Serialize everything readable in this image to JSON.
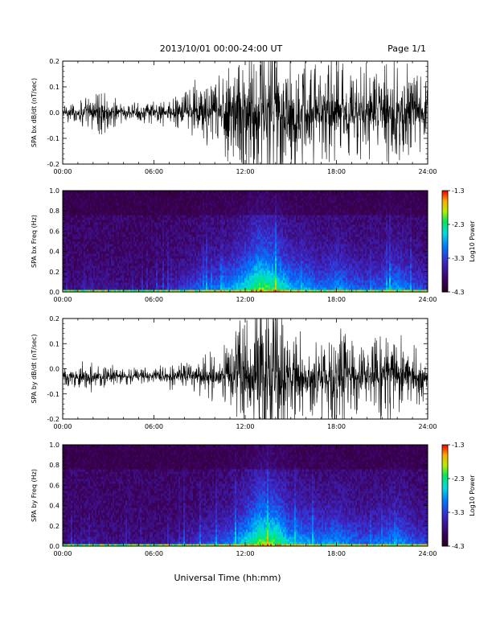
{
  "header": {
    "date_range": "2013/10/01   00:00-24:00 UT",
    "page": "Page 1/1"
  },
  "xlabel": "Universal Time (hh:mm)",
  "chart_data": [
    {
      "type": "line",
      "ylabel": "SPA bx dB/dt (nT/sec)",
      "xlim": [
        0,
        24
      ],
      "ylim": [
        -0.2,
        0.2
      ],
      "x_ticks": [
        "00:00",
        "06:00",
        "12:00",
        "18:00",
        "24:00"
      ],
      "y_ticks": [
        "-0.2",
        "-0.1",
        "0.0",
        "0.1",
        "0.2"
      ],
      "series": [
        {
          "x_hours": [
            0,
            1,
            2,
            3,
            4,
            5,
            6,
            7,
            8,
            9,
            10,
            11,
            12,
            13,
            14,
            15,
            16,
            17,
            18,
            19,
            20,
            21,
            22,
            23,
            24
          ],
          "envelope": [
            0.02,
            0.03,
            0.05,
            0.06,
            0.03,
            0.02,
            0.03,
            0.03,
            0.05,
            0.08,
            0.1,
            0.14,
            0.17,
            0.22,
            0.2,
            0.16,
            0.14,
            0.12,
            0.18,
            0.12,
            0.1,
            0.12,
            0.13,
            0.1,
            0.08
          ],
          "offset": [
            0.0,
            0.0,
            0.0,
            0.0,
            0.0,
            0.0,
            0.0,
            0.0,
            0.0,
            0.0,
            0.0,
            0.0,
            0.0,
            0.0,
            0.0,
            0.0,
            0.0,
            0.0,
            0.0,
            0.0,
            0.0,
            0.0,
            0.0,
            0.0,
            0.0
          ]
        }
      ]
    },
    {
      "type": "heatmap",
      "ylabel": "SPA bx Freq (Hz)",
      "xlim": [
        0,
        24
      ],
      "ylim": [
        0,
        1
      ],
      "x_ticks": [
        "00:00",
        "06:00",
        "12:00",
        "18:00",
        "24:00"
      ],
      "y_ticks": [
        "0.0",
        "0.2",
        "0.4",
        "0.6",
        "0.8",
        "1.0"
      ],
      "colorbar": {
        "label": "Log10 Power",
        "ticks": [
          "-1.3",
          "-2.3",
          "-3.3",
          "-4.3"
        ],
        "range": [
          -4.3,
          -1.3
        ]
      },
      "activity_by_hour": [
        0.05,
        0.1,
        0.15,
        0.15,
        0.1,
        0.1,
        0.15,
        0.2,
        0.3,
        0.4,
        0.45,
        0.55,
        0.7,
        0.9,
        0.8,
        0.6,
        0.55,
        0.45,
        0.55,
        0.45,
        0.4,
        0.45,
        0.55,
        0.4,
        0.3
      ]
    },
    {
      "type": "line",
      "ylabel": "SPA by dB/dt (nT/sec)",
      "xlim": [
        0,
        24
      ],
      "ylim": [
        -0.2,
        0.2
      ],
      "x_ticks": [
        "00:00",
        "06:00",
        "12:00",
        "18:00",
        "24:00"
      ],
      "y_ticks": [
        "-0.2",
        "-0.1",
        "0.0",
        "0.1",
        "0.2"
      ],
      "series": [
        {
          "x_hours": [
            0,
            1,
            2,
            3,
            4,
            5,
            6,
            7,
            8,
            9,
            10,
            11,
            12,
            13,
            14,
            15,
            16,
            17,
            18,
            19,
            20,
            21,
            22,
            23,
            24
          ],
          "envelope": [
            0.02,
            0.03,
            0.04,
            0.03,
            0.02,
            0.02,
            0.02,
            0.03,
            0.03,
            0.05,
            0.06,
            0.08,
            0.15,
            0.22,
            0.21,
            0.15,
            0.1,
            0.1,
            0.14,
            0.1,
            0.08,
            0.1,
            0.11,
            0.08,
            0.06
          ],
          "offset": [
            -0.03,
            -0.03,
            -0.03,
            -0.03,
            -0.03,
            -0.03,
            -0.03,
            -0.03,
            -0.03,
            -0.03,
            -0.03,
            -0.03,
            -0.03,
            -0.03,
            -0.03,
            -0.03,
            -0.03,
            -0.03,
            -0.03,
            -0.03,
            -0.03,
            -0.03,
            -0.03,
            -0.03,
            -0.03
          ]
        }
      ]
    },
    {
      "type": "heatmap",
      "ylabel": "SPA by Freq (Hz)",
      "xlim": [
        0,
        24
      ],
      "ylim": [
        0,
        1
      ],
      "x_ticks": [
        "00:00",
        "06:00",
        "12:00",
        "18:00",
        "24:00"
      ],
      "y_ticks": [
        "0.0",
        "0.2",
        "0.4",
        "0.6",
        "0.8",
        "1.0"
      ],
      "colorbar": {
        "label": "Log10 Power",
        "ticks": [
          "-1.3",
          "-2.3",
          "-3.3",
          "-4.3"
        ],
        "range": [
          -4.3,
          -1.3
        ]
      },
      "activity_by_hour": [
        0.05,
        0.1,
        0.15,
        0.1,
        0.1,
        0.1,
        0.1,
        0.15,
        0.2,
        0.3,
        0.35,
        0.45,
        0.65,
        0.9,
        0.85,
        0.6,
        0.55,
        0.5,
        0.55,
        0.45,
        0.4,
        0.45,
        0.55,
        0.4,
        0.3
      ]
    }
  ]
}
